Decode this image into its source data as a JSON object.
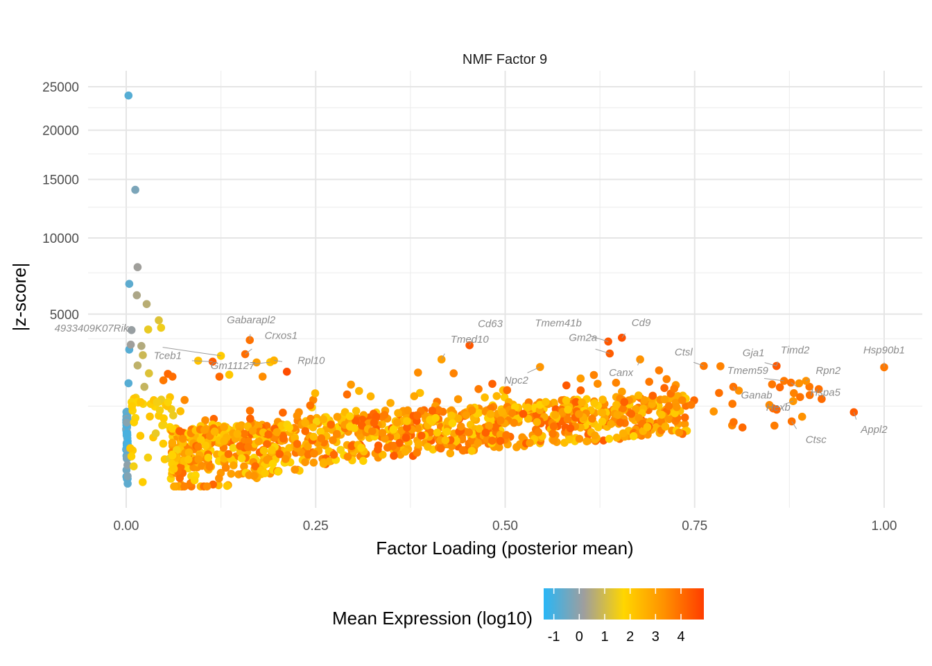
{
  "chart_data": {
    "type": "scatter",
    "title": "NMF Factor 9",
    "xlabel": "Factor Loading (posterior mean)",
    "ylabel": "|z-score|",
    "xlim": [
      -0.02,
      1.02
    ],
    "ylim": [
      0,
      26000
    ],
    "y_scale": "sqrt",
    "x_ticks": [
      0.0,
      0.25,
      0.5,
      0.75,
      1.0
    ],
    "x_tick_labels": [
      "0.00",
      "0.25",
      "0.50",
      "0.75",
      "1.00"
    ],
    "y_ticks": [
      5000,
      10000,
      15000,
      20000,
      25000
    ],
    "y_tick_labels": [
      "5000",
      "10000",
      "15000",
      "20000",
      "25000"
    ],
    "grid": true,
    "color_legend": {
      "title": "Mean Expression (log10)",
      "placement": "bottom",
      "ticks": [
        -1,
        0,
        1,
        2,
        3,
        4
      ],
      "tick_labels": [
        "-1",
        "0",
        "1",
        "2",
        "3",
        "4"
      ],
      "range": [
        -1.4,
        4.9
      ],
      "colors": [
        "#29b6f6",
        "#9e9e9e",
        "#ffd600",
        "#ff9100",
        "#ff3d00"
      ]
    },
    "labeled_points": [
      {
        "gene": "Gabarapl2",
        "x": 0.163,
        "y": 3690,
        "expr": 3.9
      },
      {
        "gene": "4933409K07Rik",
        "x": 0.125,
        "y": 2990,
        "expr": 2.0
      },
      {
        "gene": "Crxos1",
        "x": 0.157,
        "y": 3060,
        "expr": 4.0
      },
      {
        "gene": "Tceb1",
        "x": 0.114,
        "y": 2750,
        "expr": 4.3
      },
      {
        "gene": "Gm11127",
        "x": 0.19,
        "y": 2730,
        "expr": 2.2
      },
      {
        "gene": "Rpl10",
        "x": 0.195,
        "y": 2800,
        "expr": 2.6
      },
      {
        "gene": "Cd63",
        "x": 0.453,
        "y": 3450,
        "expr": 4.4
      },
      {
        "gene": "Tmed10",
        "x": 0.416,
        "y": 2840,
        "expr": 3.0
      },
      {
        "gene": "Tmem41b",
        "x": 0.636,
        "y": 3620,
        "expr": 4.4
      },
      {
        "gene": "Cd9",
        "x": 0.654,
        "y": 3800,
        "expr": 4.5
      },
      {
        "gene": "Gm2a",
        "x": 0.638,
        "y": 3090,
        "expr": 4.3
      },
      {
        "gene": "Npc2",
        "x": 0.546,
        "y": 2540,
        "expr": 3.2
      },
      {
        "gene": "Canx",
        "x": 0.678,
        "y": 2840,
        "expr": 3.3
      },
      {
        "gene": "Ctsl",
        "x": 0.762,
        "y": 2580,
        "expr": 3.8
      },
      {
        "gene": "Gja1",
        "x": 0.858,
        "y": 2580,
        "expr": 4.4
      },
      {
        "gene": "Timd2",
        "x": 0.858,
        "y": 2580,
        "expr": 4.4
      },
      {
        "gene": "Tmem59",
        "x": 0.868,
        "y": 2030,
        "expr": 3.8
      },
      {
        "gene": "Rpn2",
        "x": 0.897,
        "y": 2030,
        "expr": 3.3
      },
      {
        "gene": "Hspa5",
        "x": 0.877,
        "y": 1970,
        "expr": 3.9
      },
      {
        "gene": "Ganab",
        "x": 0.801,
        "y": 1830,
        "expr": 3.9
      },
      {
        "gene": "Hexb",
        "x": 0.88,
        "y": 1390,
        "expr": 3.2
      },
      {
        "gene": "Ctsc",
        "x": 0.878,
        "y": 870,
        "expr": 3.9
      },
      {
        "gene": "Appl2",
        "x": 0.96,
        "y": 1090,
        "expr": 4.3
      },
      {
        "gene": "Hsp90b1",
        "x": 1.0,
        "y": 2530,
        "expr": 3.8
      }
    ],
    "high_points": [
      {
        "x": 0.003,
        "y": 23940,
        "expr": -0.8
      },
      {
        "x": 0.012,
        "y": 14040,
        "expr": -0.3
      },
      {
        "x": 0.015,
        "y": 7880,
        "expr": 0.2
      },
      {
        "x": 0.004,
        "y": 6780,
        "expr": -0.7
      },
      {
        "x": 0.014,
        "y": 6080,
        "expr": 0.4
      },
      {
        "x": 0.027,
        "y": 5560,
        "expr": 0.6
      },
      {
        "x": 0.043,
        "y": 4670,
        "expr": 1.2
      },
      {
        "x": 0.046,
        "y": 4290,
        "expr": 1.5
      },
      {
        "x": 0.029,
        "y": 4200,
        "expr": 1.4
      },
      {
        "x": 0.007,
        "y": 4170,
        "expr": 0.1
      },
      {
        "x": 0.004,
        "y": 3260,
        "expr": -0.8
      },
      {
        "x": 0.006,
        "y": 3480,
        "expr": 0.2
      },
      {
        "x": 0.02,
        "y": 3420,
        "expr": 0.5
      },
      {
        "x": 0.022,
        "y": 3020,
        "expr": 0.9
      },
      {
        "x": 0.003,
        "y": 1950,
        "expr": -0.8
      },
      {
        "x": 0.015,
        "y": 2600,
        "expr": 0.7
      },
      {
        "x": 0.03,
        "y": 2300,
        "expr": 1.2
      },
      {
        "x": 0.024,
        "y": 1830,
        "expr": 0.8
      },
      {
        "x": 0.055,
        "y": 2280,
        "expr": 4.1
      },
      {
        "x": 0.061,
        "y": 2180,
        "expr": 4.0
      },
      {
        "x": 0.049,
        "y": 2050,
        "expr": 3.8
      },
      {
        "x": 0.095,
        "y": 2790,
        "expr": 2.2
      },
      {
        "x": 0.123,
        "y": 2180,
        "expr": 4.1
      },
      {
        "x": 0.136,
        "y": 2250,
        "expr": 2.1
      },
      {
        "x": 0.18,
        "y": 2180,
        "expr": 3.4
      },
      {
        "x": 0.172,
        "y": 2720,
        "expr": 3.0
      },
      {
        "x": 0.212,
        "y": 2360,
        "expr": 4.6
      },
      {
        "x": 0.385,
        "y": 2330,
        "expr": 3.4
      },
      {
        "x": 0.432,
        "y": 2300,
        "expr": 3.6
      },
      {
        "x": 0.703,
        "y": 2410,
        "expr": 3.7
      },
      {
        "x": 0.713,
        "y": 2090,
        "expr": 3.6
      },
      {
        "x": 0.784,
        "y": 2570,
        "expr": 3.6
      },
      {
        "x": 0.617,
        "y": 2240,
        "expr": 3.6
      },
      {
        "x": 0.622,
        "y": 1930,
        "expr": 3.4
      },
      {
        "x": 0.69,
        "y": 2000,
        "expr": 3.8
      },
      {
        "x": 0.723,
        "y": 1770,
        "expr": 3.7
      }
    ]
  }
}
